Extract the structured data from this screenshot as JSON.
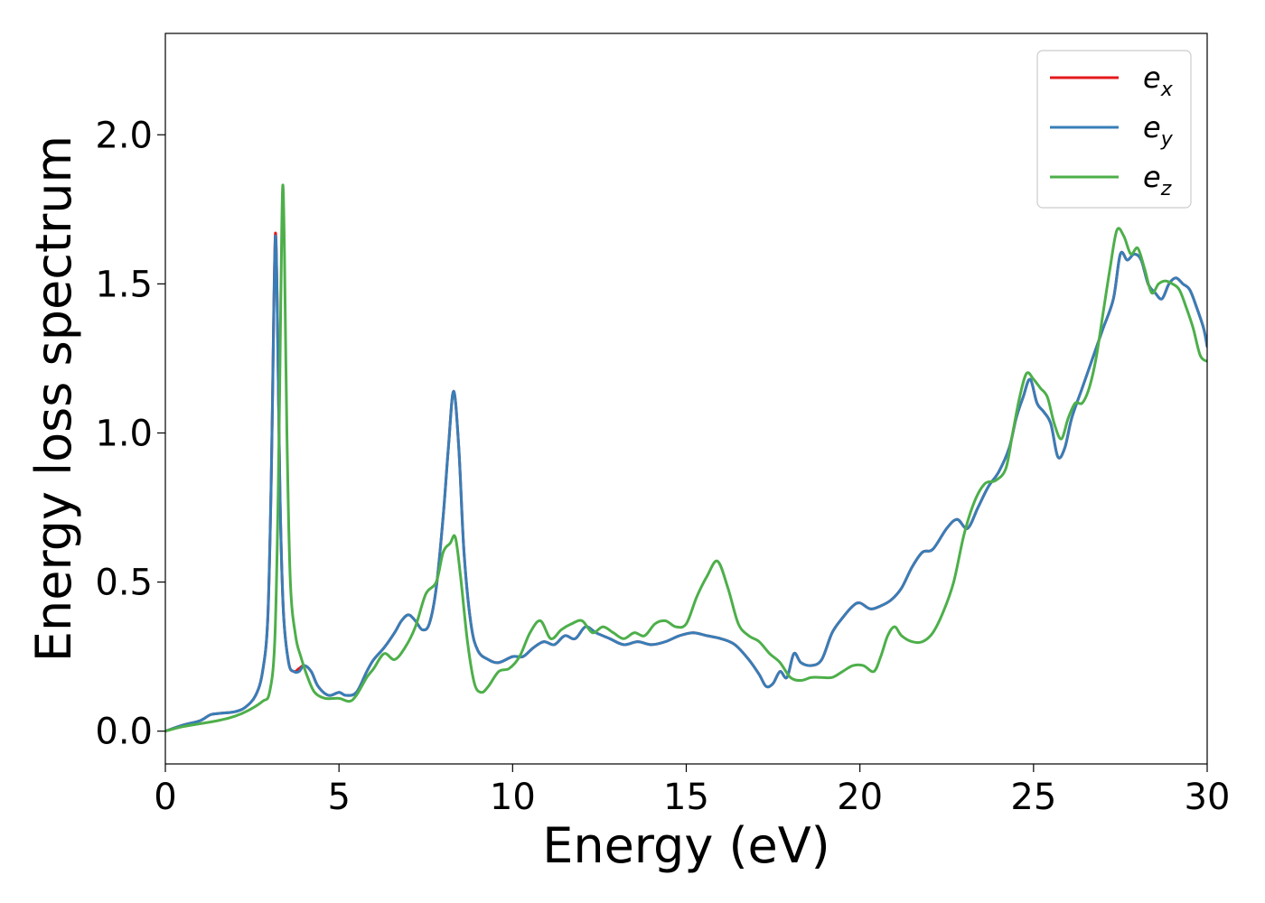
{
  "chart_data": {
    "type": "line",
    "xlabel": "Energy (eV)",
    "ylabel": "Energy loss spectrum",
    "xlim": [
      0,
      30
    ],
    "ylim": [
      -0.11,
      2.34
    ],
    "xticks": [
      0,
      5,
      10,
      15,
      20,
      25,
      30
    ],
    "xtick_labels": [
      "0",
      "5",
      "10",
      "15",
      "20",
      "25",
      "30"
    ],
    "yticks": [
      0.0,
      0.5,
      1.0,
      1.5,
      2.0
    ],
    "ytick_labels": [
      "0.0",
      "0.5",
      "1.0",
      "1.5",
      "2.0"
    ],
    "grid": false,
    "legend_position": "top-right",
    "series": [
      {
        "name": "e_x",
        "legend_base": "e",
        "legend_sub": "x",
        "color": "#e41a1c",
        "x": [
          0,
          0.5,
          1.0,
          1.3,
          1.6,
          2.0,
          2.3,
          2.6,
          2.8,
          2.95,
          3.05,
          3.12,
          3.17,
          3.22,
          3.3,
          3.4,
          3.55,
          3.7,
          3.85,
          4.0,
          4.2,
          4.4,
          4.7,
          5.0,
          5.2,
          5.5,
          5.8,
          6.0,
          6.3,
          6.6,
          6.8,
          7.0,
          7.2,
          7.4,
          7.6,
          7.8,
          8.0,
          8.15,
          8.3,
          8.45,
          8.6,
          8.8,
          9.0,
          9.3,
          9.6,
          10.0,
          10.3,
          10.6,
          10.9,
          11.2,
          11.5,
          11.8,
          12.1,
          12.4,
          12.8,
          13.2,
          13.6,
          14.0,
          14.4,
          14.8,
          15.2,
          15.6,
          16.0,
          16.4,
          16.8,
          17.1,
          17.3,
          17.5,
          17.7,
          17.9,
          18.1,
          18.3,
          18.6,
          18.9,
          19.2,
          19.5,
          19.8,
          20.0,
          20.3,
          20.6,
          20.9,
          21.2,
          21.5,
          21.8,
          22.1,
          22.5,
          22.8,
          23.1,
          23.4,
          23.7,
          24.0,
          24.3,
          24.5,
          24.7,
          24.9,
          25.1,
          25.3,
          25.5,
          25.7,
          25.9,
          26.1,
          26.4,
          26.7,
          27.0,
          27.3,
          27.5,
          27.7,
          27.9,
          28.1,
          28.3,
          28.5,
          28.7,
          28.9,
          29.1,
          29.3,
          29.5,
          29.7,
          29.9,
          30.0
        ],
        "y": [
          0.0,
          0.02,
          0.035,
          0.055,
          0.06,
          0.065,
          0.08,
          0.12,
          0.2,
          0.38,
          0.85,
          1.4,
          1.67,
          1.45,
          0.8,
          0.4,
          0.23,
          0.2,
          0.21,
          0.22,
          0.2,
          0.15,
          0.12,
          0.13,
          0.12,
          0.13,
          0.2,
          0.24,
          0.28,
          0.33,
          0.37,
          0.39,
          0.37,
          0.34,
          0.36,
          0.48,
          0.72,
          0.95,
          1.14,
          0.95,
          0.6,
          0.36,
          0.27,
          0.24,
          0.23,
          0.25,
          0.25,
          0.28,
          0.3,
          0.29,
          0.32,
          0.31,
          0.35,
          0.33,
          0.31,
          0.29,
          0.3,
          0.29,
          0.3,
          0.32,
          0.33,
          0.32,
          0.31,
          0.29,
          0.24,
          0.19,
          0.15,
          0.16,
          0.2,
          0.18,
          0.26,
          0.23,
          0.22,
          0.24,
          0.33,
          0.38,
          0.42,
          0.43,
          0.41,
          0.42,
          0.44,
          0.48,
          0.55,
          0.6,
          0.61,
          0.68,
          0.71,
          0.68,
          0.75,
          0.82,
          0.87,
          0.95,
          1.05,
          1.12,
          1.18,
          1.1,
          1.07,
          1.03,
          0.92,
          0.95,
          1.05,
          1.15,
          1.25,
          1.35,
          1.45,
          1.6,
          1.58,
          1.6,
          1.58,
          1.5,
          1.47,
          1.45,
          1.5,
          1.52,
          1.5,
          1.48,
          1.42,
          1.35,
          1.29
        ]
      },
      {
        "name": "e_y",
        "legend_base": "e",
        "legend_sub": "y",
        "color": "#377eb8",
        "x": [
          0,
          0.5,
          1.0,
          1.3,
          1.6,
          2.0,
          2.3,
          2.6,
          2.8,
          2.95,
          3.05,
          3.12,
          3.17,
          3.22,
          3.3,
          3.4,
          3.55,
          3.7,
          3.85,
          4.0,
          4.2,
          4.4,
          4.7,
          5.0,
          5.2,
          5.5,
          5.8,
          6.0,
          6.3,
          6.6,
          6.8,
          7.0,
          7.2,
          7.4,
          7.6,
          7.8,
          8.0,
          8.15,
          8.3,
          8.45,
          8.6,
          8.8,
          9.0,
          9.3,
          9.6,
          10.0,
          10.3,
          10.6,
          10.9,
          11.2,
          11.5,
          11.8,
          12.1,
          12.4,
          12.8,
          13.2,
          13.6,
          14.0,
          14.4,
          14.8,
          15.2,
          15.6,
          16.0,
          16.4,
          16.8,
          17.1,
          17.3,
          17.5,
          17.7,
          17.9,
          18.1,
          18.3,
          18.6,
          18.9,
          19.2,
          19.5,
          19.8,
          20.0,
          20.3,
          20.6,
          20.9,
          21.2,
          21.5,
          21.8,
          22.1,
          22.5,
          22.8,
          23.1,
          23.4,
          23.7,
          24.0,
          24.3,
          24.5,
          24.7,
          24.9,
          25.1,
          25.3,
          25.5,
          25.7,
          25.9,
          26.1,
          26.4,
          26.7,
          27.0,
          27.3,
          27.5,
          27.7,
          27.9,
          28.1,
          28.3,
          28.5,
          28.7,
          28.9,
          29.1,
          29.3,
          29.5,
          29.7,
          29.9,
          30.0
        ],
        "y": [
          0.0,
          0.02,
          0.035,
          0.055,
          0.06,
          0.065,
          0.08,
          0.12,
          0.2,
          0.38,
          0.85,
          1.38,
          1.66,
          1.44,
          0.8,
          0.4,
          0.23,
          0.2,
          0.2,
          0.22,
          0.2,
          0.15,
          0.12,
          0.13,
          0.12,
          0.13,
          0.2,
          0.24,
          0.28,
          0.33,
          0.37,
          0.39,
          0.37,
          0.34,
          0.36,
          0.48,
          0.72,
          0.95,
          1.14,
          0.95,
          0.6,
          0.36,
          0.27,
          0.24,
          0.23,
          0.25,
          0.25,
          0.28,
          0.3,
          0.29,
          0.32,
          0.31,
          0.35,
          0.33,
          0.31,
          0.29,
          0.3,
          0.29,
          0.3,
          0.32,
          0.33,
          0.32,
          0.31,
          0.29,
          0.24,
          0.19,
          0.15,
          0.16,
          0.2,
          0.18,
          0.26,
          0.23,
          0.22,
          0.24,
          0.33,
          0.38,
          0.42,
          0.43,
          0.41,
          0.42,
          0.44,
          0.48,
          0.55,
          0.6,
          0.61,
          0.68,
          0.71,
          0.68,
          0.75,
          0.82,
          0.87,
          0.95,
          1.05,
          1.12,
          1.18,
          1.1,
          1.07,
          1.03,
          0.92,
          0.95,
          1.05,
          1.15,
          1.25,
          1.35,
          1.45,
          1.6,
          1.58,
          1.6,
          1.58,
          1.5,
          1.47,
          1.45,
          1.5,
          1.52,
          1.5,
          1.48,
          1.42,
          1.35,
          1.29
        ]
      },
      {
        "name": "e_z",
        "legend_base": "e",
        "legend_sub": "z",
        "color": "#4daf4a",
        "x": [
          0,
          0.5,
          1.0,
          1.5,
          2.0,
          2.4,
          2.8,
          3.0,
          3.15,
          3.25,
          3.33,
          3.38,
          3.43,
          3.5,
          3.6,
          3.75,
          3.9,
          4.1,
          4.3,
          4.6,
          5.0,
          5.3,
          5.5,
          5.8,
          6.0,
          6.3,
          6.6,
          6.9,
          7.2,
          7.5,
          7.8,
          8.0,
          8.2,
          8.35,
          8.5,
          8.7,
          8.9,
          9.1,
          9.3,
          9.6,
          9.9,
          10.2,
          10.5,
          10.8,
          11.1,
          11.4,
          11.7,
          12.0,
          12.3,
          12.6,
          12.9,
          13.2,
          13.5,
          13.8,
          14.1,
          14.4,
          14.7,
          15.0,
          15.3,
          15.6,
          15.9,
          16.2,
          16.5,
          16.8,
          17.1,
          17.4,
          17.7,
          18.0,
          18.3,
          18.6,
          18.9,
          19.2,
          19.5,
          19.8,
          20.1,
          20.4,
          20.6,
          20.8,
          21.0,
          21.2,
          21.5,
          21.8,
          22.1,
          22.4,
          22.7,
          23.0,
          23.3,
          23.6,
          23.9,
          24.2,
          24.4,
          24.6,
          24.8,
          25.0,
          25.2,
          25.4,
          25.6,
          25.8,
          26.0,
          26.2,
          26.4,
          26.6,
          26.8,
          27.0,
          27.2,
          27.4,
          27.6,
          27.8,
          28.0,
          28.2,
          28.4,
          28.6,
          28.8,
          29.0,
          29.2,
          29.4,
          29.6,
          29.8,
          30.0
        ],
        "y": [
          0.0,
          0.015,
          0.025,
          0.035,
          0.05,
          0.07,
          0.1,
          0.13,
          0.3,
          0.8,
          1.5,
          1.83,
          1.6,
          1.0,
          0.5,
          0.32,
          0.25,
          0.18,
          0.13,
          0.11,
          0.11,
          0.1,
          0.12,
          0.18,
          0.21,
          0.26,
          0.24,
          0.28,
          0.35,
          0.46,
          0.5,
          0.6,
          0.63,
          0.65,
          0.52,
          0.3,
          0.16,
          0.13,
          0.15,
          0.2,
          0.21,
          0.25,
          0.33,
          0.37,
          0.31,
          0.34,
          0.36,
          0.37,
          0.33,
          0.35,
          0.33,
          0.31,
          0.33,
          0.32,
          0.36,
          0.37,
          0.35,
          0.36,
          0.45,
          0.52,
          0.57,
          0.48,
          0.36,
          0.32,
          0.3,
          0.26,
          0.23,
          0.18,
          0.17,
          0.18,
          0.18,
          0.18,
          0.2,
          0.22,
          0.22,
          0.2,
          0.25,
          0.32,
          0.35,
          0.32,
          0.3,
          0.3,
          0.33,
          0.4,
          0.5,
          0.66,
          0.77,
          0.83,
          0.84,
          0.88,
          1.0,
          1.12,
          1.2,
          1.18,
          1.15,
          1.12,
          1.03,
          0.98,
          1.05,
          1.1,
          1.1,
          1.15,
          1.25,
          1.4,
          1.55,
          1.68,
          1.66,
          1.6,
          1.62,
          1.55,
          1.47,
          1.5,
          1.51,
          1.5,
          1.48,
          1.42,
          1.35,
          1.26,
          1.24
        ]
      }
    ]
  }
}
